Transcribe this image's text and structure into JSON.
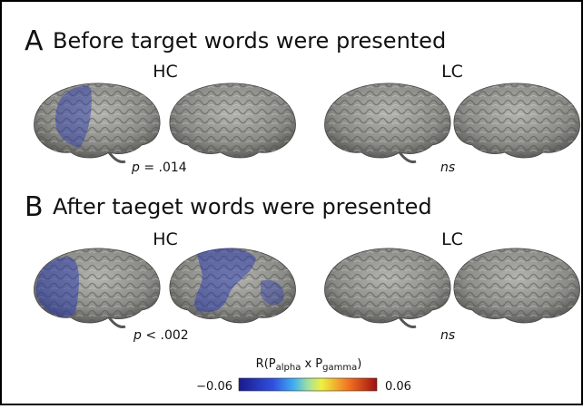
{
  "panels": [
    {
      "letter": "A",
      "title": "Before target words were presented",
      "groups": [
        {
          "label": "HC",
          "stat": {
            "symbol": "p",
            "text": " = .014"
          }
        },
        {
          "label": "LC",
          "stat": {
            "symbol": "ns"
          }
        }
      ]
    },
    {
      "letter": "B",
      "title": "After taeget words were presented",
      "groups": [
        {
          "label": "HC",
          "stat": {
            "symbol": "p",
            "text": " < .002"
          }
        },
        {
          "label": "LC",
          "stat": {
            "symbol": "ns"
          }
        }
      ]
    }
  ],
  "colorbar": {
    "label": {
      "prefix": "R(P",
      "sub1": "alpha",
      "mid": " x P",
      "sub2": "gamma",
      "suffix": ")"
    },
    "min": "−0.06",
    "max": "0.06"
  }
}
